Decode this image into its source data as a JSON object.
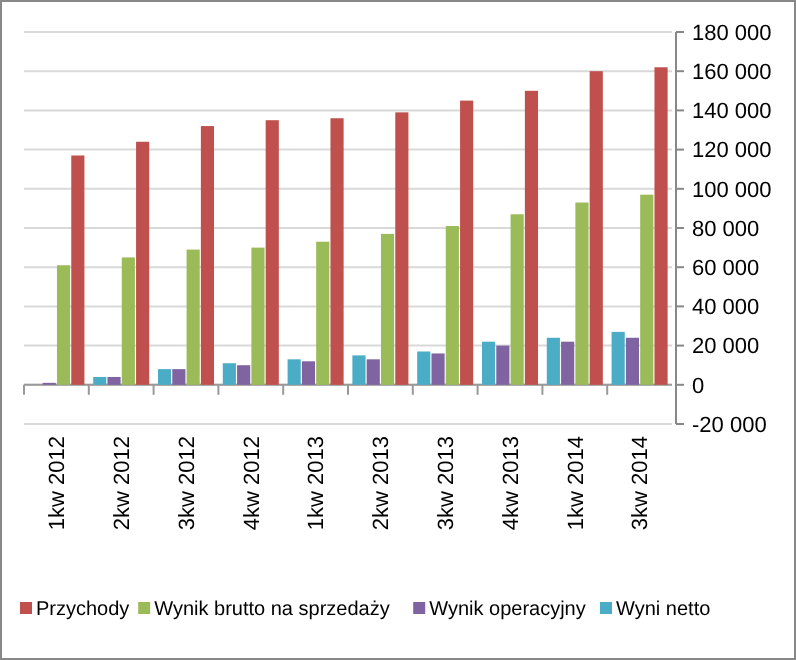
{
  "chart_data": {
    "type": "bar",
    "categories": [
      "1kw 2012",
      "2kw 2012",
      "3kw 2012",
      "4kw 2012",
      "1kw 2013",
      "2kw 2013",
      "3kw 2013",
      "4kw 2013",
      "1kw 2014",
      "3kw 2014"
    ],
    "series": [
      {
        "name": "Przychody",
        "color": "#c0504d",
        "values": [
          117000,
          124000,
          132000,
          135000,
          136000,
          139000,
          145000,
          150000,
          160000,
          162000
        ]
      },
      {
        "name": "Wynik brutto na sprzedaży",
        "color": "#9bbb59",
        "values": [
          61000,
          65000,
          69000,
          70000,
          73000,
          77000,
          81000,
          87000,
          93000,
          97000
        ]
      },
      {
        "name": "Wynik operacyjny",
        "color": "#8064a2",
        "values": [
          1000,
          4000,
          8000,
          10000,
          12000,
          13000,
          16000,
          20000,
          22000,
          24000
        ]
      },
      {
        "name": "Wyni netto",
        "color": "#4bacc6",
        "values": [
          0,
          4000,
          8000,
          11000,
          13000,
          15000,
          17000,
          22000,
          24000,
          27000
        ]
      }
    ],
    "ylim": [
      -20000,
      180000
    ],
    "yticks": [
      {
        "value": -20000,
        "label": "-20 000"
      },
      0,
      {
        "value": 20000,
        "label": "20 000"
      },
      {
        "value": 40000,
        "label": "40 000"
      },
      {
        "value": 60000,
        "label": "60 000"
      },
      {
        "value": 80000,
        "label": "80 000"
      },
      {
        "value": 100000,
        "label": "100 000"
      },
      {
        "value": 120000,
        "label": "120 000"
      },
      {
        "value": 140000,
        "label": "140 000"
      },
      {
        "value": 160000,
        "label": "160 000"
      },
      {
        "value": 180000,
        "label": "180 000"
      }
    ],
    "grid": "y",
    "legend": "bottom"
  }
}
